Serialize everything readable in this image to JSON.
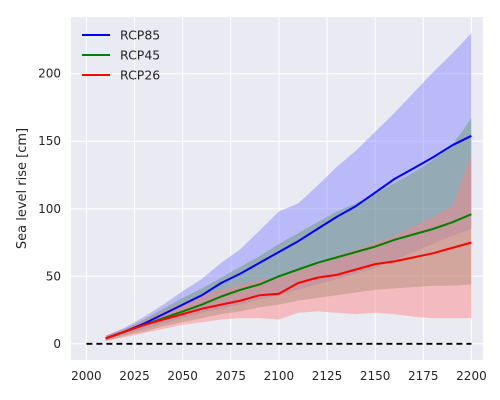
{
  "chart_data": {
    "type": "line",
    "xlabel": "",
    "ylabel": "Sea level rise [cm]",
    "xlim": [
      1992,
      2206
    ],
    "ylim": [
      -12,
      242
    ],
    "xticks": [
      2000,
      2025,
      2050,
      2075,
      2100,
      2125,
      2150,
      2175,
      2200
    ],
    "yticks": [
      0,
      50,
      100,
      150,
      200
    ],
    "grid": true,
    "legend_position": "top-left",
    "x": [
      2010,
      2020,
      2030,
      2040,
      2050,
      2060,
      2070,
      2080,
      2090,
      2100,
      2110,
      2120,
      2130,
      2140,
      2150,
      2160,
      2170,
      2180,
      2190,
      2200
    ],
    "series": [
      {
        "name": "RCP85",
        "color": "#0000ff",
        "values": [
          4,
          9,
          15,
          22,
          29,
          36,
          45,
          52,
          60,
          68,
          76,
          85,
          94,
          102,
          112,
          122,
          130,
          138,
          147,
          154
        ],
        "lower": [
          3,
          7,
          11,
          15,
          19,
          23,
          26,
          29,
          33,
          36,
          40,
          44,
          48,
          52,
          56,
          62,
          68,
          74,
          80,
          85
        ],
        "upper": [
          6,
          12,
          20,
          29,
          39,
          48,
          60,
          70,
          84,
          98,
          104,
          117,
          131,
          143,
          157,
          171,
          186,
          201,
          215,
          230
        ],
        "fill": "#8080ff"
      },
      {
        "name": "RCP45",
        "color": "#008000",
        "values": [
          4,
          9,
          14,
          19,
          24,
          29,
          35,
          40,
          44,
          50,
          55,
          60,
          64,
          68,
          72,
          77,
          81,
          85,
          90,
          96
        ],
        "lower": [
          2,
          6,
          9,
          13,
          16,
          19,
          22,
          24,
          27,
          29,
          32,
          34,
          36,
          38,
          40,
          41,
          42,
          43,
          43,
          44
        ],
        "upper": [
          6,
          11,
          18,
          26,
          34,
          41,
          49,
          57,
          65,
          74,
          82,
          90,
          98,
          104,
          111,
          119,
          127,
          136,
          147,
          167
        ],
        "fill": "#669966"
      },
      {
        "name": "RCP26",
        "color": "#ff0000",
        "values": [
          4,
          9,
          14,
          18,
          22,
          26,
          29,
          32,
          36,
          37,
          45,
          49,
          51,
          55,
          59,
          61,
          64,
          67,
          71,
          75
        ],
        "lower": [
          2,
          5,
          8,
          11,
          14,
          16,
          18,
          19,
          19,
          18,
          23,
          24,
          23,
          22,
          23,
          22,
          20,
          19,
          19,
          19
        ],
        "upper": [
          6,
          11,
          17,
          24,
          30,
          36,
          40,
          44,
          47,
          50,
          56,
          60,
          65,
          70,
          75,
          80,
          87,
          94,
          102,
          140
        ],
        "fill": "#ff8080"
      }
    ],
    "baseline": {
      "y": 0,
      "color": "#000000",
      "style": "dashed"
    }
  }
}
